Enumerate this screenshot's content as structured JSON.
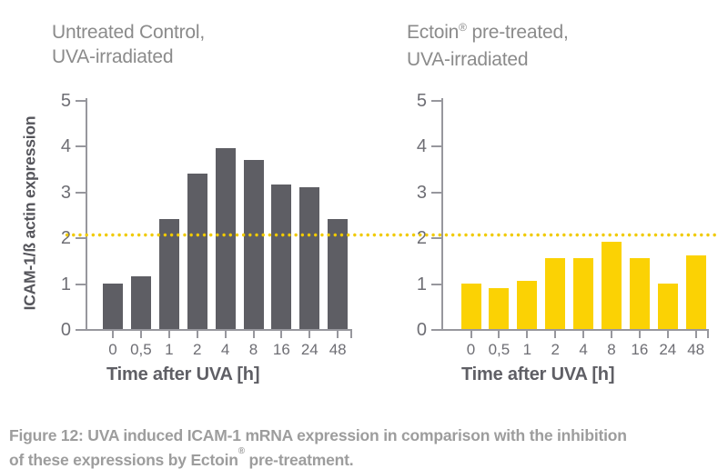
{
  "titles": {
    "left": {
      "line1": "Untreated Control,",
      "line2": "UVA-irradiated"
    },
    "right": {
      "brand": "Ectoin",
      "reg": "®",
      "rest": " pre-treated,",
      "line2": "UVA-irradiated"
    }
  },
  "chart_data": [
    {
      "type": "bar",
      "title": "Untreated Control, UVA-irradiated",
      "categories": [
        "0",
        "0,5",
        "1",
        "2",
        "4",
        "8",
        "16",
        "24",
        "48"
      ],
      "values": [
        1.0,
        1.15,
        2.4,
        3.4,
        3.95,
        3.7,
        3.15,
        3.1,
        2.4
      ],
      "xlabel": "Time after UVA [h]",
      "ylabel": "ICAM-1/ß actin expression",
      "ylim": [
        0,
        5
      ],
      "yticks": [
        0,
        1,
        2,
        3,
        4,
        5
      ],
      "grid": false,
      "bar_color": "#5e5e64",
      "reference_line": {
        "value": 2.07,
        "color": "#f0ca00",
        "style": "dotted",
        "spans_both_charts": true
      }
    },
    {
      "type": "bar",
      "title": "Ectoin® pre-treated, UVA-irradiated",
      "categories": [
        "0",
        "0,5",
        "1",
        "2",
        "4",
        "8",
        "16",
        "24",
        "48"
      ],
      "values": [
        1.0,
        0.9,
        1.05,
        1.55,
        1.55,
        1.9,
        1.55,
        1.0,
        1.6
      ],
      "xlabel": "Time after UVA [h]",
      "ylabel": "",
      "ylim": [
        0,
        5
      ],
      "yticks": [
        0,
        1,
        2,
        3,
        4,
        5
      ],
      "grid": false,
      "bar_color": "#fbd204",
      "reference_line": {
        "value": 2.07,
        "color": "#f0ca00",
        "style": "dotted",
        "spans_both_charts": true
      }
    }
  ],
  "caption": {
    "line1": "Figure 12: UVA induced ICAM-1 mRNA expression in comparison with the inhibition",
    "line2_pre": "of these expressions by Ectoin",
    "line2_sup": "®",
    "line2_post": " pre-treatment."
  },
  "colors": {
    "bar_gray": "#5e5e64",
    "bar_yellow": "#fbd204",
    "reference_yellow": "#f0ca00",
    "axis_gray": "#97979d"
  }
}
